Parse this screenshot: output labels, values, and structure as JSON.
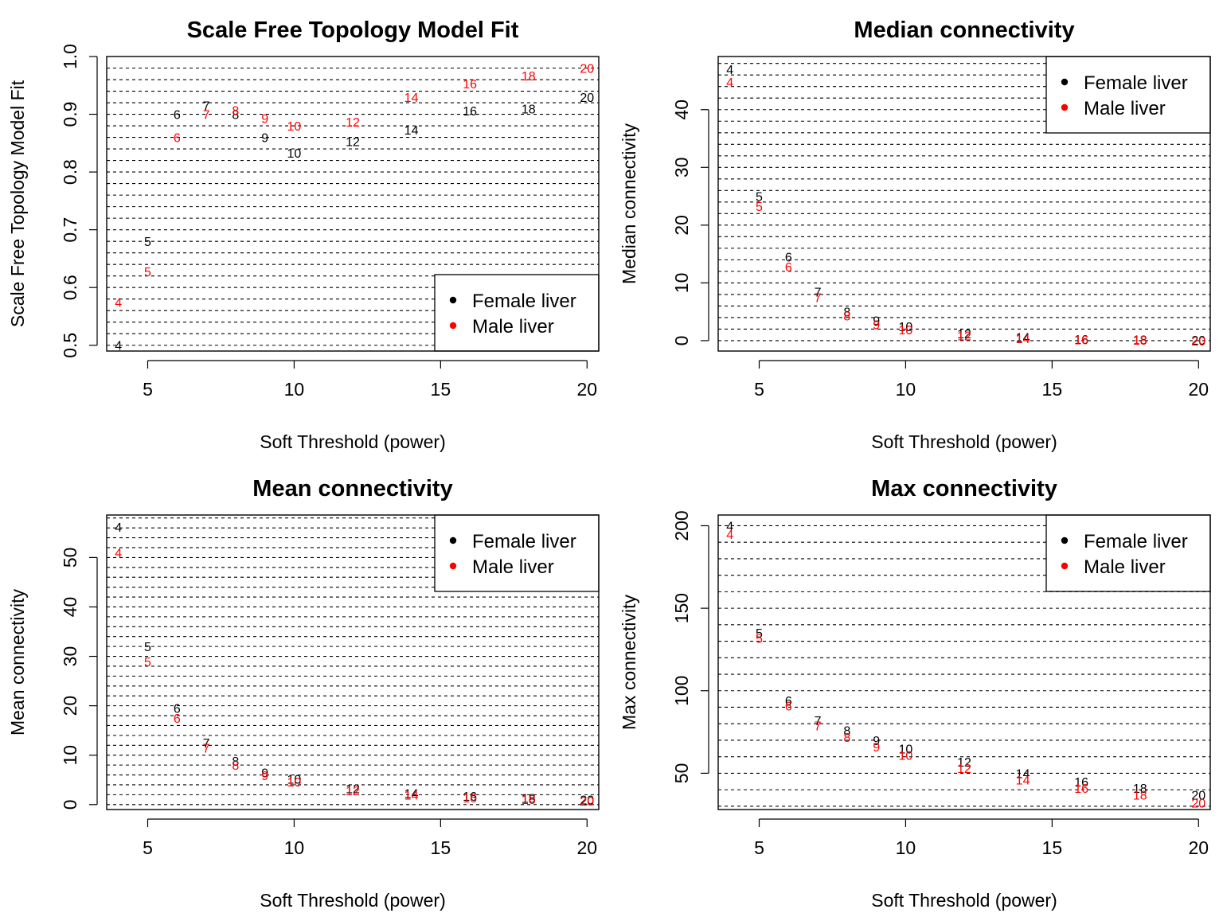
{
  "chart_data": [
    {
      "type": "scatter",
      "title": "Scale Free Topology Model Fit",
      "xlabel": "Soft Threshold (power)",
      "ylabel": "Scale Free Topology Model Fit",
      "xlim": [
        3.6,
        20.4
      ],
      "ylim": [
        0.49,
        1.0
      ],
      "xticks": [
        5,
        10,
        15,
        20
      ],
      "yticks": [
        0.5,
        0.6,
        0.7,
        0.8,
        0.9,
        1.0
      ],
      "ytick_labels": [
        "0.5",
        "0.6",
        "0.7",
        "0.8",
        "0.9",
        "1.0"
      ],
      "hlines": [
        0.5,
        0.52,
        0.54,
        0.56,
        0.58,
        0.6,
        0.62,
        0.64,
        0.66,
        0.68,
        0.7,
        0.72,
        0.74,
        0.76,
        0.78,
        0.8,
        0.82,
        0.84,
        0.86,
        0.88,
        0.9,
        0.92,
        0.94,
        0.96,
        0.98,
        1.0
      ],
      "grid": true,
      "legend": "bottom-right",
      "x": [
        4,
        5,
        6,
        7,
        8,
        9,
        10,
        12,
        14,
        16,
        18,
        20
      ],
      "series": [
        {
          "name": "Female liver",
          "color": "#000000",
          "values": [
            0.5,
            0.68,
            0.9,
            0.915,
            0.9,
            0.86,
            0.833,
            0.853,
            0.873,
            0.906,
            0.91,
            0.93
          ]
        },
        {
          "name": "Male liver",
          "color": "#ff0000",
          "values": [
            0.575,
            0.628,
            0.86,
            0.9,
            0.907,
            0.893,
            0.88,
            0.887,
            0.93,
            0.953,
            0.967,
            0.98
          ]
        }
      ]
    },
    {
      "type": "scatter",
      "title": "Median connectivity",
      "xlabel": "Soft Threshold (power)",
      "ylabel": "Median connectivity",
      "xlim": [
        3.6,
        20.4
      ],
      "ylim": [
        -1.8,
        49.2
      ],
      "xticks": [
        5,
        10,
        15,
        20
      ],
      "yticks": [
        0,
        10,
        20,
        30,
        40
      ],
      "ytick_labels": [
        "0",
        "10",
        "20",
        "30",
        "40"
      ],
      "hlines": [
        0,
        2,
        4,
        6,
        8,
        10,
        12,
        14,
        16,
        18,
        20,
        22,
        24,
        26,
        28,
        30,
        32,
        34,
        36,
        38,
        40,
        42,
        44,
        46,
        48
      ],
      "grid": true,
      "legend": "top-right",
      "x": [
        4,
        5,
        6,
        7,
        8,
        9,
        10,
        12,
        14,
        16,
        18,
        20
      ],
      "series": [
        {
          "name": "Female liver",
          "color": "#000000",
          "values": [
            47.0,
            25.0,
            14.5,
            8.5,
            5.0,
            3.5,
            2.5,
            1.2,
            0.6,
            0.3,
            0.2,
            0.1
          ]
        },
        {
          "name": "Male liver",
          "color": "#ff0000",
          "values": [
            44.8,
            23.3,
            12.8,
            7.5,
            4.3,
            2.8,
            1.9,
            0.9,
            0.4,
            0.2,
            0.1,
            0.0
          ]
        }
      ]
    },
    {
      "type": "scatter",
      "title": "Mean connectivity",
      "xlabel": "Soft Threshold (power)",
      "ylabel": "Mean connectivity",
      "xlim": [
        3.6,
        20.4
      ],
      "ylim": [
        -1.0,
        58.6
      ],
      "xticks": [
        5,
        10,
        15,
        20
      ],
      "yticks": [
        0,
        10,
        20,
        30,
        40,
        50
      ],
      "ytick_labels": [
        "0",
        "10",
        "20",
        "30",
        "40",
        "50"
      ],
      "hlines": [
        0,
        2,
        4,
        6,
        8,
        10,
        12,
        14,
        16,
        18,
        20,
        22,
        24,
        26,
        28,
        30,
        32,
        34,
        36,
        38,
        40,
        42,
        44,
        46,
        48,
        50,
        52,
        54,
        56,
        58
      ],
      "grid": true,
      "legend": "top-right",
      "x": [
        4,
        5,
        6,
        7,
        8,
        9,
        10,
        12,
        14,
        16,
        18,
        20
      ],
      "series": [
        {
          "name": "Female liver",
          "color": "#000000",
          "values": [
            56.2,
            32.0,
            19.5,
            12.5,
            8.8,
            6.5,
            5.2,
            3.3,
            2.3,
            1.7,
            1.3,
            1.0
          ]
        },
        {
          "name": "Male liver",
          "color": "#ff0000",
          "values": [
            51.0,
            29.0,
            17.5,
            11.5,
            8.0,
            5.9,
            4.6,
            2.9,
            2.0,
            1.4,
            1.1,
            0.8
          ]
        }
      ]
    },
    {
      "type": "scatter",
      "title": "Max connectivity",
      "xlabel": "Soft Threshold (power)",
      "ylabel": "Max connectivity",
      "xlim": [
        3.6,
        20.4
      ],
      "ylim": [
        28.0,
        206.5
      ],
      "xticks": [
        5,
        10,
        15,
        20
      ],
      "yticks": [
        50,
        100,
        150,
        200
      ],
      "ytick_labels": [
        "50",
        "100",
        "150",
        "200"
      ],
      "hlines": [
        30,
        40,
        50,
        60,
        70,
        80,
        90,
        100,
        110,
        120,
        130,
        140,
        150,
        160,
        170,
        180,
        190,
        200
      ],
      "grid": true,
      "legend": "top-right",
      "x": [
        4,
        5,
        6,
        7,
        8,
        9,
        10,
        12,
        14,
        16,
        18,
        20
      ],
      "series": [
        {
          "name": "Female liver",
          "color": "#000000",
          "values": [
            200.0,
            135.0,
            94.0,
            82.0,
            76.0,
            70.0,
            65.0,
            57.0,
            50.0,
            45.0,
            41.0,
            37.0
          ]
        },
        {
          "name": "Male liver",
          "color": "#ff0000",
          "values": [
            195.0,
            132.0,
            91.0,
            79.0,
            72.0,
            66.0,
            61.0,
            53.0,
            46.0,
            41.0,
            37.0,
            32.0
          ]
        }
      ]
    }
  ]
}
